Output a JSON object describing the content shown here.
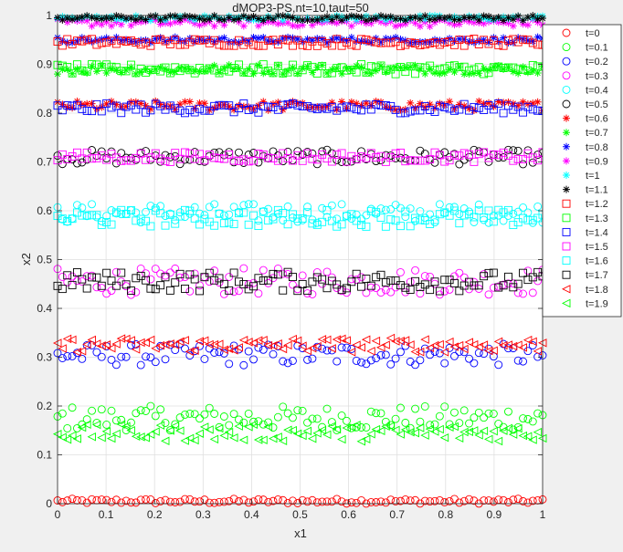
{
  "chart_data": {
    "type": "scatter",
    "title": "dMOP3-PS,nt=10,taut=50",
    "xlabel": "x1",
    "ylabel": "x2",
    "xlim": [
      0,
      1
    ],
    "ylim": [
      0,
      1
    ],
    "xticks": [
      "0",
      "0.1",
      "0.2",
      "0.3",
      "0.4",
      "0.5",
      "0.6",
      "0.7",
      "0.8",
      "0.9",
      "1"
    ],
    "yticks": [
      "0",
      "0.1",
      "0.2",
      "0.3",
      "0.4",
      "0.5",
      "0.6",
      "0.7",
      "0.8",
      "0.9",
      "1"
    ],
    "grid": true,
    "legend_position": "top-right outside",
    "points_per_series": 100,
    "series": [
      {
        "name": "t=0",
        "marker": "circle",
        "color": "#ff0000",
        "y_center": 0.005,
        "y_spread": 0.01
      },
      {
        "name": "t=0.1",
        "marker": "circle",
        "color": "#00ff00",
        "y_center": 0.175,
        "y_spread": 0.05
      },
      {
        "name": "t=0.2",
        "marker": "circle",
        "color": "#0000ff",
        "y_center": 0.305,
        "y_spread": 0.045
      },
      {
        "name": "t=0.3",
        "marker": "circle",
        "color": "#ff00ff",
        "y_center": 0.455,
        "y_spread": 0.055
      },
      {
        "name": "t=0.4",
        "marker": "circle",
        "color": "#00ffff",
        "y_center": 0.595,
        "y_spread": 0.04
      },
      {
        "name": "t=0.5",
        "marker": "circle",
        "color": "#000000",
        "y_center": 0.71,
        "y_spread": 0.03
      },
      {
        "name": "t=0.6",
        "marker": "asterisk",
        "color": "#ff0000",
        "y_center": 0.815,
        "y_spread": 0.02
      },
      {
        "name": "t=0.7",
        "marker": "asterisk",
        "color": "#00ff00",
        "y_center": 0.89,
        "y_spread": 0.02
      },
      {
        "name": "t=0.8",
        "marker": "asterisk",
        "color": "#0000ff",
        "y_center": 0.95,
        "y_spread": 0.012
      },
      {
        "name": "t=0.9",
        "marker": "asterisk",
        "color": "#ff00ff",
        "y_center": 0.985,
        "y_spread": 0.015
      },
      {
        "name": "t=1",
        "marker": "asterisk",
        "color": "#00ffff",
        "y_center": 0.995,
        "y_spread": 0.01
      },
      {
        "name": "t=1.1",
        "marker": "asterisk",
        "color": "#000000",
        "y_center": 0.995,
        "y_spread": 0.01
      },
      {
        "name": "t=1.2",
        "marker": "square",
        "color": "#ff0000",
        "y_center": 0.945,
        "y_spread": 0.015
      },
      {
        "name": "t=1.3",
        "marker": "square",
        "color": "#00ff00",
        "y_center": 0.89,
        "y_spread": 0.02
      },
      {
        "name": "t=1.4",
        "marker": "square",
        "color": "#0000ff",
        "y_center": 0.81,
        "y_spread": 0.02
      },
      {
        "name": "t=1.5",
        "marker": "square",
        "color": "#ff00ff",
        "y_center": 0.71,
        "y_spread": 0.02
      },
      {
        "name": "t=1.6",
        "marker": "square",
        "color": "#00ffff",
        "y_center": 0.585,
        "y_spread": 0.035
      },
      {
        "name": "t=1.7",
        "marker": "square",
        "color": "#000000",
        "y_center": 0.455,
        "y_spread": 0.04
      },
      {
        "name": "t=1.8",
        "marker": "triangle-left",
        "color": "#ff0000",
        "y_center": 0.325,
        "y_spread": 0.03
      },
      {
        "name": "t=1.9",
        "marker": "triangle-left",
        "color": "#00ff00",
        "y_center": 0.145,
        "y_spread": 0.035
      }
    ]
  }
}
